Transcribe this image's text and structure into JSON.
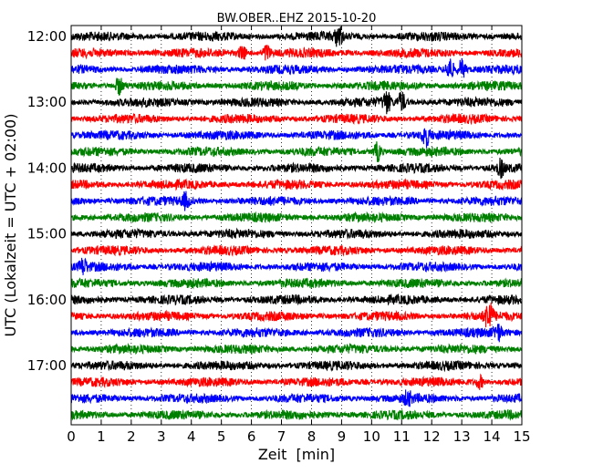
{
  "chart_data": {
    "type": "line",
    "title": "BW.OBER..EHZ 2015-10-20",
    "xlabel": "Zeit  [min]",
    "ylabel": "UTC (Lokalzeit = UTC + 02:00)",
    "xlim": [
      0,
      15
    ],
    "x_ticks": [
      "0",
      "1",
      "2",
      "3",
      "4",
      "5",
      "6",
      "7",
      "8",
      "9",
      "10",
      "11",
      "12",
      "13",
      "14",
      "15"
    ],
    "y_ticks": [
      "12:00",
      "13:00",
      "14:00",
      "15:00",
      "16:00",
      "17:00"
    ],
    "grid": "vertical dotted",
    "trace_start_times": [
      "12:00",
      "12:15",
      "12:30",
      "12:45",
      "13:00",
      "13:15",
      "13:30",
      "13:45",
      "14:00",
      "14:15",
      "14:30",
      "14:45",
      "15:00",
      "15:15",
      "15:30",
      "15:45",
      "16:00",
      "16:15",
      "16:30",
      "16:45",
      "17:00",
      "17:15",
      "17:30",
      "17:45"
    ],
    "colors": [
      "#000000",
      "#ff0000",
      "#0000ff",
      "#008000"
    ],
    "events": [
      {
        "trace": "12:00",
        "x": 8.9,
        "amp": 0.55
      },
      {
        "trace": "12:15",
        "x": 5.7,
        "amp": 0.4
      },
      {
        "trace": "12:15",
        "x": 6.5,
        "amp": 0.45
      },
      {
        "trace": "12:30",
        "x": 12.6,
        "amp": 0.7
      },
      {
        "trace": "12:30",
        "x": 13.0,
        "amp": 0.55
      },
      {
        "trace": "12:45",
        "x": 1.6,
        "amp": 0.5
      },
      {
        "trace": "13:00",
        "x": 10.5,
        "amp": 0.6
      },
      {
        "trace": "13:00",
        "x": 11.0,
        "amp": 0.55
      },
      {
        "trace": "13:30",
        "x": 11.8,
        "amp": 0.6
      },
      {
        "trace": "13:45",
        "x": 10.2,
        "amp": 0.55
      },
      {
        "trace": "14:00",
        "x": 14.3,
        "amp": 0.45
      },
      {
        "trace": "14:30",
        "x": 3.8,
        "amp": 0.4
      },
      {
        "trace": "15:30",
        "x": 0.4,
        "amp": 0.4
      },
      {
        "trace": "16:15",
        "x": 13.9,
        "amp": 0.9
      },
      {
        "trace": "16:30",
        "x": 14.2,
        "amp": 0.45
      },
      {
        "trace": "17:15",
        "x": 13.6,
        "amp": 0.35
      },
      {
        "trace": "17:30",
        "x": 11.2,
        "amp": 0.35
      }
    ]
  }
}
